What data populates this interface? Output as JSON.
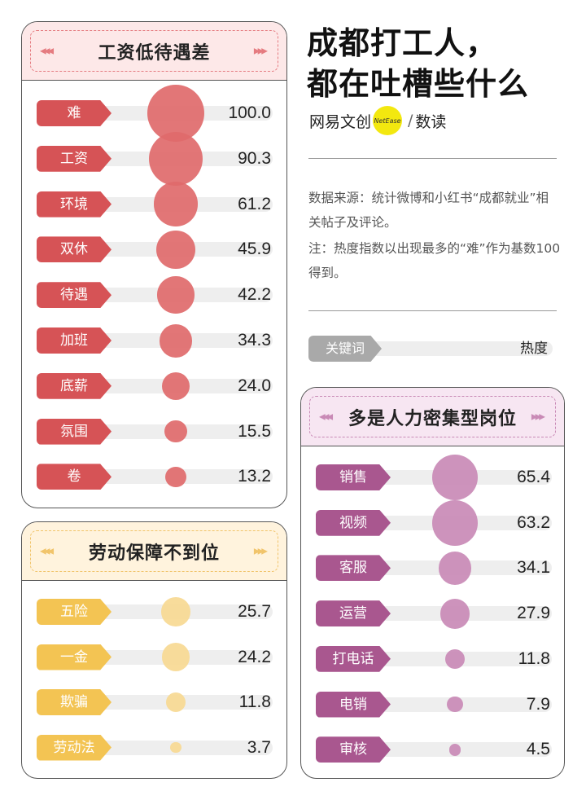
{
  "title_lines": [
    "成都打工人，",
    "都在吐槽些什么"
  ],
  "brand": {
    "left": "网易文创",
    "badge": "NetEase",
    "sep": "/",
    "right": "数读"
  },
  "note": {
    "source": "数据来源：统计微博和小红书“成都就业”相关帖子及评论。",
    "remark": "注：热度指数以出现最多的“难”作为基数100得到。"
  },
  "legend": {
    "tag": "关键词",
    "value": "热度"
  },
  "colors": {
    "red": "#d65356",
    "red_bubble": "#df6a6b",
    "red_head_bg": "#fde8e8",
    "red_head_border": "#e57b80",
    "yellow": "#f3c453",
    "yellow_bubble": "#f7d992",
    "yellow_head_bg": "#fff3dd",
    "yellow_head_border": "#f1c46b",
    "purple": "#a9578f",
    "purple_bubble": "#c98ab6",
    "purple_head_bg": "#f7e6f2",
    "purple_head_border": "#c98ab6"
  },
  "chart_data": [
    {
      "type": "bubble",
      "title": "工资低待遇差",
      "categories": [
        "难",
        "工资",
        "环境",
        "双休",
        "待遇",
        "加班",
        "底薪",
        "氛围",
        "卷"
      ],
      "values": [
        100.0,
        90.3,
        61.2,
        45.9,
        42.2,
        34.3,
        24.0,
        15.5,
        13.2
      ],
      "value_labels": [
        "100.0",
        "90.3",
        "61.2",
        "45.9",
        "42.2",
        "34.3",
        "24.0",
        "15.5",
        "13.2"
      ],
      "color": "red"
    },
    {
      "type": "bubble",
      "title": "劳动保障不到位",
      "categories": [
        "五险",
        "一金",
        "欺骗",
        "劳动法"
      ],
      "values": [
        25.7,
        24.2,
        11.8,
        3.7
      ],
      "value_labels": [
        "25.7",
        "24.2",
        "11.8",
        "3.7"
      ],
      "color": "yellow"
    },
    {
      "type": "bubble",
      "title": "多是人力密集型岗位",
      "categories": [
        "销售",
        "视频",
        "客服",
        "运营",
        "打电话",
        "电销",
        "审核"
      ],
      "values": [
        65.4,
        63.2,
        34.1,
        27.9,
        11.8,
        7.9,
        4.5
      ],
      "value_labels": [
        "65.4",
        "63.2",
        "34.1",
        "27.9",
        "11.8",
        "7.9",
        "4.5"
      ],
      "color": "purple"
    }
  ]
}
